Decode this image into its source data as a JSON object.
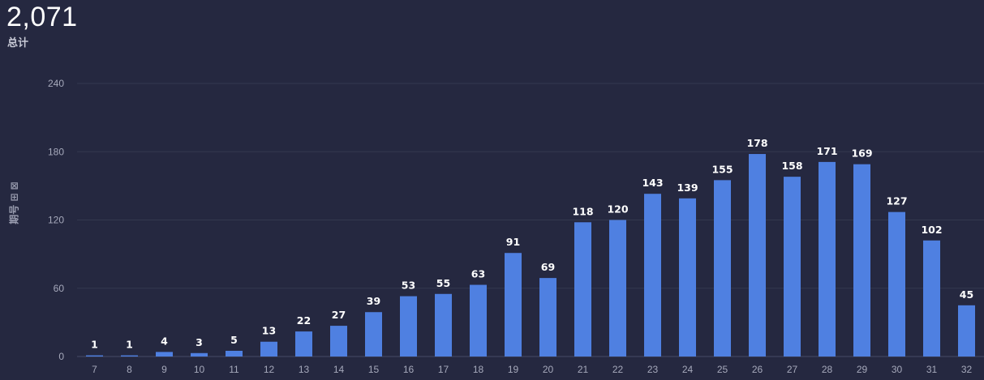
{
  "summary": {
    "total_value": "2,071",
    "total_label": "总计"
  },
  "chart_data": {
    "type": "bar",
    "categories": [
      "7",
      "8",
      "9",
      "10",
      "11",
      "12",
      "13",
      "14",
      "15",
      "16",
      "17",
      "18",
      "19",
      "20",
      "21",
      "22",
      "23",
      "24",
      "25",
      "26",
      "27",
      "28",
      "29",
      "30",
      "31",
      "32"
    ],
    "values": [
      1,
      1,
      4,
      3,
      5,
      13,
      22,
      27,
      39,
      53,
      55,
      63,
      91,
      69,
      118,
      120,
      143,
      139,
      155,
      178,
      158,
      171,
      169,
      127,
      102,
      45
    ],
    "ylabel": "期号 ⊞ ⊠",
    "ylim": [
      0,
      240
    ],
    "yticks": [
      0,
      60,
      120,
      180,
      240
    ],
    "grid": true,
    "bar_color": "#4f80e1",
    "background": "#252840"
  }
}
